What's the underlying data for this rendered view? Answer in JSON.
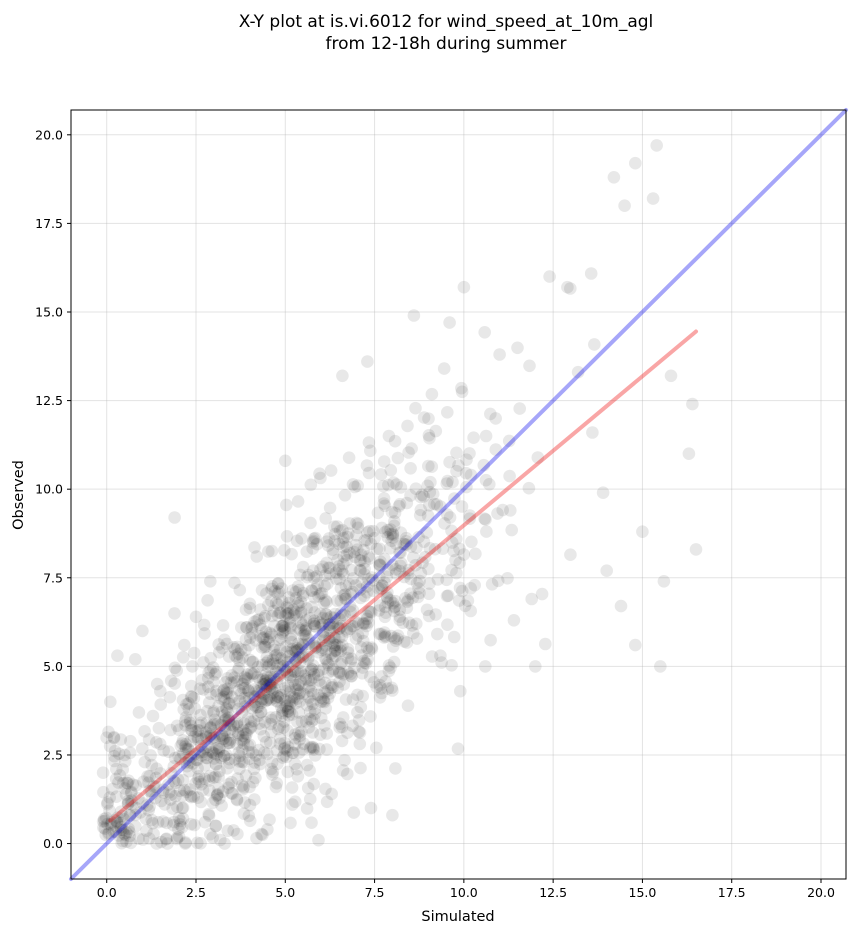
{
  "chart_data": {
    "type": "scatter",
    "title": "X-Y plot at is.vi.6012 for wind_speed_at_10m_agl",
    "subtitle": "from 12-18h during summer",
    "xlabel": "Simulated",
    "ylabel": "Observed",
    "xlim": [
      -1.0,
      20.7
    ],
    "ylim": [
      -1.0,
      20.7
    ],
    "xticks": [
      "0.0",
      "2.5",
      "5.0",
      "7.5",
      "10.0",
      "12.5",
      "15.0",
      "17.5",
      "20.0"
    ],
    "yticks": [
      "0.0",
      "2.5",
      "5.0",
      "7.5",
      "10.0",
      "12.5",
      "15.0",
      "17.5",
      "20.0"
    ],
    "grid": true,
    "legend": "none",
    "point_color": "#000000",
    "point_alpha": 0.09,
    "n_points_approx": 1500,
    "points_sample": [
      [
        -0.1,
        2.0
      ],
      [
        0.1,
        4.0
      ],
      [
        0.3,
        5.3
      ],
      [
        0.2,
        3.0
      ],
      [
        0.4,
        0.9
      ],
      [
        0.5,
        2.5
      ],
      [
        0.6,
        1.2
      ],
      [
        0.8,
        5.2
      ],
      [
        0.9,
        3.7
      ],
      [
        1.0,
        6.0
      ],
      [
        1.1,
        0.7
      ],
      [
        1.2,
        1.9
      ],
      [
        1.4,
        0.0
      ],
      [
        1.5,
        4.3
      ],
      [
        1.7,
        0.0
      ],
      [
        1.9,
        9.2
      ],
      [
        2.0,
        1.8
      ],
      [
        2.2,
        0.0
      ],
      [
        2.4,
        5.0
      ],
      [
        2.5,
        6.4
      ],
      [
        2.9,
        7.4
      ],
      [
        3.0,
        3.0
      ],
      [
        3.3,
        0.0
      ],
      [
        3.6,
        5.3
      ],
      [
        3.9,
        6.6
      ],
      [
        4.0,
        1.6
      ],
      [
        4.2,
        8.1
      ],
      [
        4.5,
        0.4
      ],
      [
        5.0,
        10.8
      ],
      [
        5.1,
        6.5
      ],
      [
        5.2,
        1.1
      ],
      [
        5.8,
        6.2
      ],
      [
        6.0,
        4.0
      ],
      [
        6.3,
        1.4
      ],
      [
        6.6,
        13.2
      ],
      [
        6.8,
        8.2
      ],
      [
        7.3,
        13.6
      ],
      [
        7.4,
        1.0
      ],
      [
        7.9,
        11.5
      ],
      [
        8.0,
        0.8
      ],
      [
        8.6,
        14.9
      ],
      [
        9.6,
        14.7
      ],
      [
        9.9,
        4.3
      ],
      [
        10.0,
        15.7
      ],
      [
        10.2,
        10.4
      ],
      [
        10.6,
        5.0
      ],
      [
        11.0,
        13.8
      ],
      [
        11.3,
        9.4
      ],
      [
        11.4,
        6.3
      ],
      [
        11.9,
        6.9
      ],
      [
        12.0,
        5.0
      ],
      [
        12.4,
        16.0
      ],
      [
        12.9,
        15.7
      ],
      [
        13.2,
        13.3
      ],
      [
        13.6,
        11.6
      ],
      [
        13.9,
        9.9
      ],
      [
        14.0,
        7.7
      ],
      [
        14.2,
        18.8
      ],
      [
        14.4,
        6.7
      ],
      [
        14.5,
        18.0
      ],
      [
        14.8,
        19.2
      ],
      [
        14.8,
        5.6
      ],
      [
        15.0,
        8.8
      ],
      [
        15.3,
        18.2
      ],
      [
        15.4,
        19.7
      ],
      [
        15.5,
        5.0
      ],
      [
        15.6,
        7.4
      ],
      [
        15.8,
        13.2
      ],
      [
        16.3,
        11.0
      ],
      [
        16.4,
        12.4
      ],
      [
        16.5,
        8.3
      ]
    ],
    "lines": [
      {
        "name": "1:1",
        "color": "#0000ee",
        "alpha": 0.35,
        "x": [
          -1.0,
          20.7
        ],
        "y": [
          -1.0,
          20.7
        ]
      },
      {
        "name": "fit",
        "color": "#ee0000",
        "alpha": 0.35,
        "x": [
          0.1,
          16.5
        ],
        "y": [
          0.65,
          14.45
        ]
      }
    ]
  }
}
